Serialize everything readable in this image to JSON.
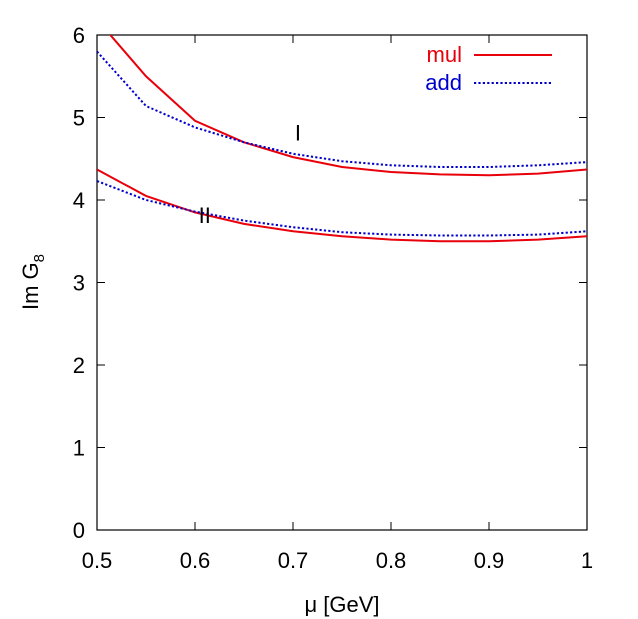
{
  "chart_data": {
    "type": "line",
    "xlabel": "μ [GeV]",
    "ylabel_main": "Im G",
    "ylabel_sub": "8",
    "xlim": [
      0.5,
      1.0
    ],
    "ylim": [
      0,
      6
    ],
    "x_ticks": [
      0.5,
      0.6,
      0.7,
      0.8,
      0.9,
      1.0
    ],
    "x_tick_labels": [
      "0.5",
      "0.6",
      "0.7",
      "0.8",
      "0.9",
      "1"
    ],
    "y_ticks": [
      0,
      1,
      2,
      3,
      4,
      5,
      6
    ],
    "y_tick_labels": [
      "0",
      "1",
      "2",
      "3",
      "4",
      "5",
      "6"
    ],
    "grid": false,
    "legend_position": "top-right",
    "legend": [
      {
        "label": "mul",
        "color": "#e8000b",
        "style": "solid"
      },
      {
        "label": "add",
        "color": "#0000cc",
        "style": "dotted"
      }
    ],
    "annotations": [
      {
        "text": "I",
        "x": 0.705,
        "y": 4.72
      },
      {
        "text": "II",
        "x": 0.61,
        "y": 3.72
      }
    ],
    "series": [
      {
        "name": "mul",
        "group": "I",
        "color": "#e8000b",
        "style": "solid",
        "x": [
          0.51,
          0.55,
          0.6,
          0.65,
          0.7,
          0.75,
          0.8,
          0.85,
          0.9,
          0.95,
          1.0
        ],
        "y": [
          6.05,
          5.5,
          4.96,
          4.7,
          4.52,
          4.4,
          4.34,
          4.31,
          4.3,
          4.32,
          4.37
        ]
      },
      {
        "name": "add",
        "group": "I",
        "color": "#0000cc",
        "style": "dotted",
        "x": [
          0.5,
          0.55,
          0.6,
          0.65,
          0.7,
          0.75,
          0.8,
          0.85,
          0.9,
          0.95,
          1.0
        ],
        "y": [
          5.8,
          5.14,
          4.88,
          4.7,
          4.56,
          4.47,
          4.42,
          4.4,
          4.4,
          4.42,
          4.46
        ]
      },
      {
        "name": "mul",
        "group": "II",
        "color": "#e8000b",
        "style": "solid",
        "x": [
          0.5,
          0.55,
          0.6,
          0.65,
          0.7,
          0.75,
          0.8,
          0.85,
          0.9,
          0.95,
          1.0
        ],
        "y": [
          4.37,
          4.05,
          3.85,
          3.71,
          3.62,
          3.56,
          3.52,
          3.5,
          3.5,
          3.52,
          3.56
        ]
      },
      {
        "name": "add",
        "group": "II",
        "color": "#0000cc",
        "style": "dotted",
        "x": [
          0.5,
          0.55,
          0.6,
          0.65,
          0.7,
          0.75,
          0.8,
          0.85,
          0.9,
          0.95,
          1.0
        ],
        "y": [
          4.23,
          4.0,
          3.86,
          3.75,
          3.67,
          3.61,
          3.58,
          3.57,
          3.57,
          3.58,
          3.62
        ]
      }
    ]
  }
}
